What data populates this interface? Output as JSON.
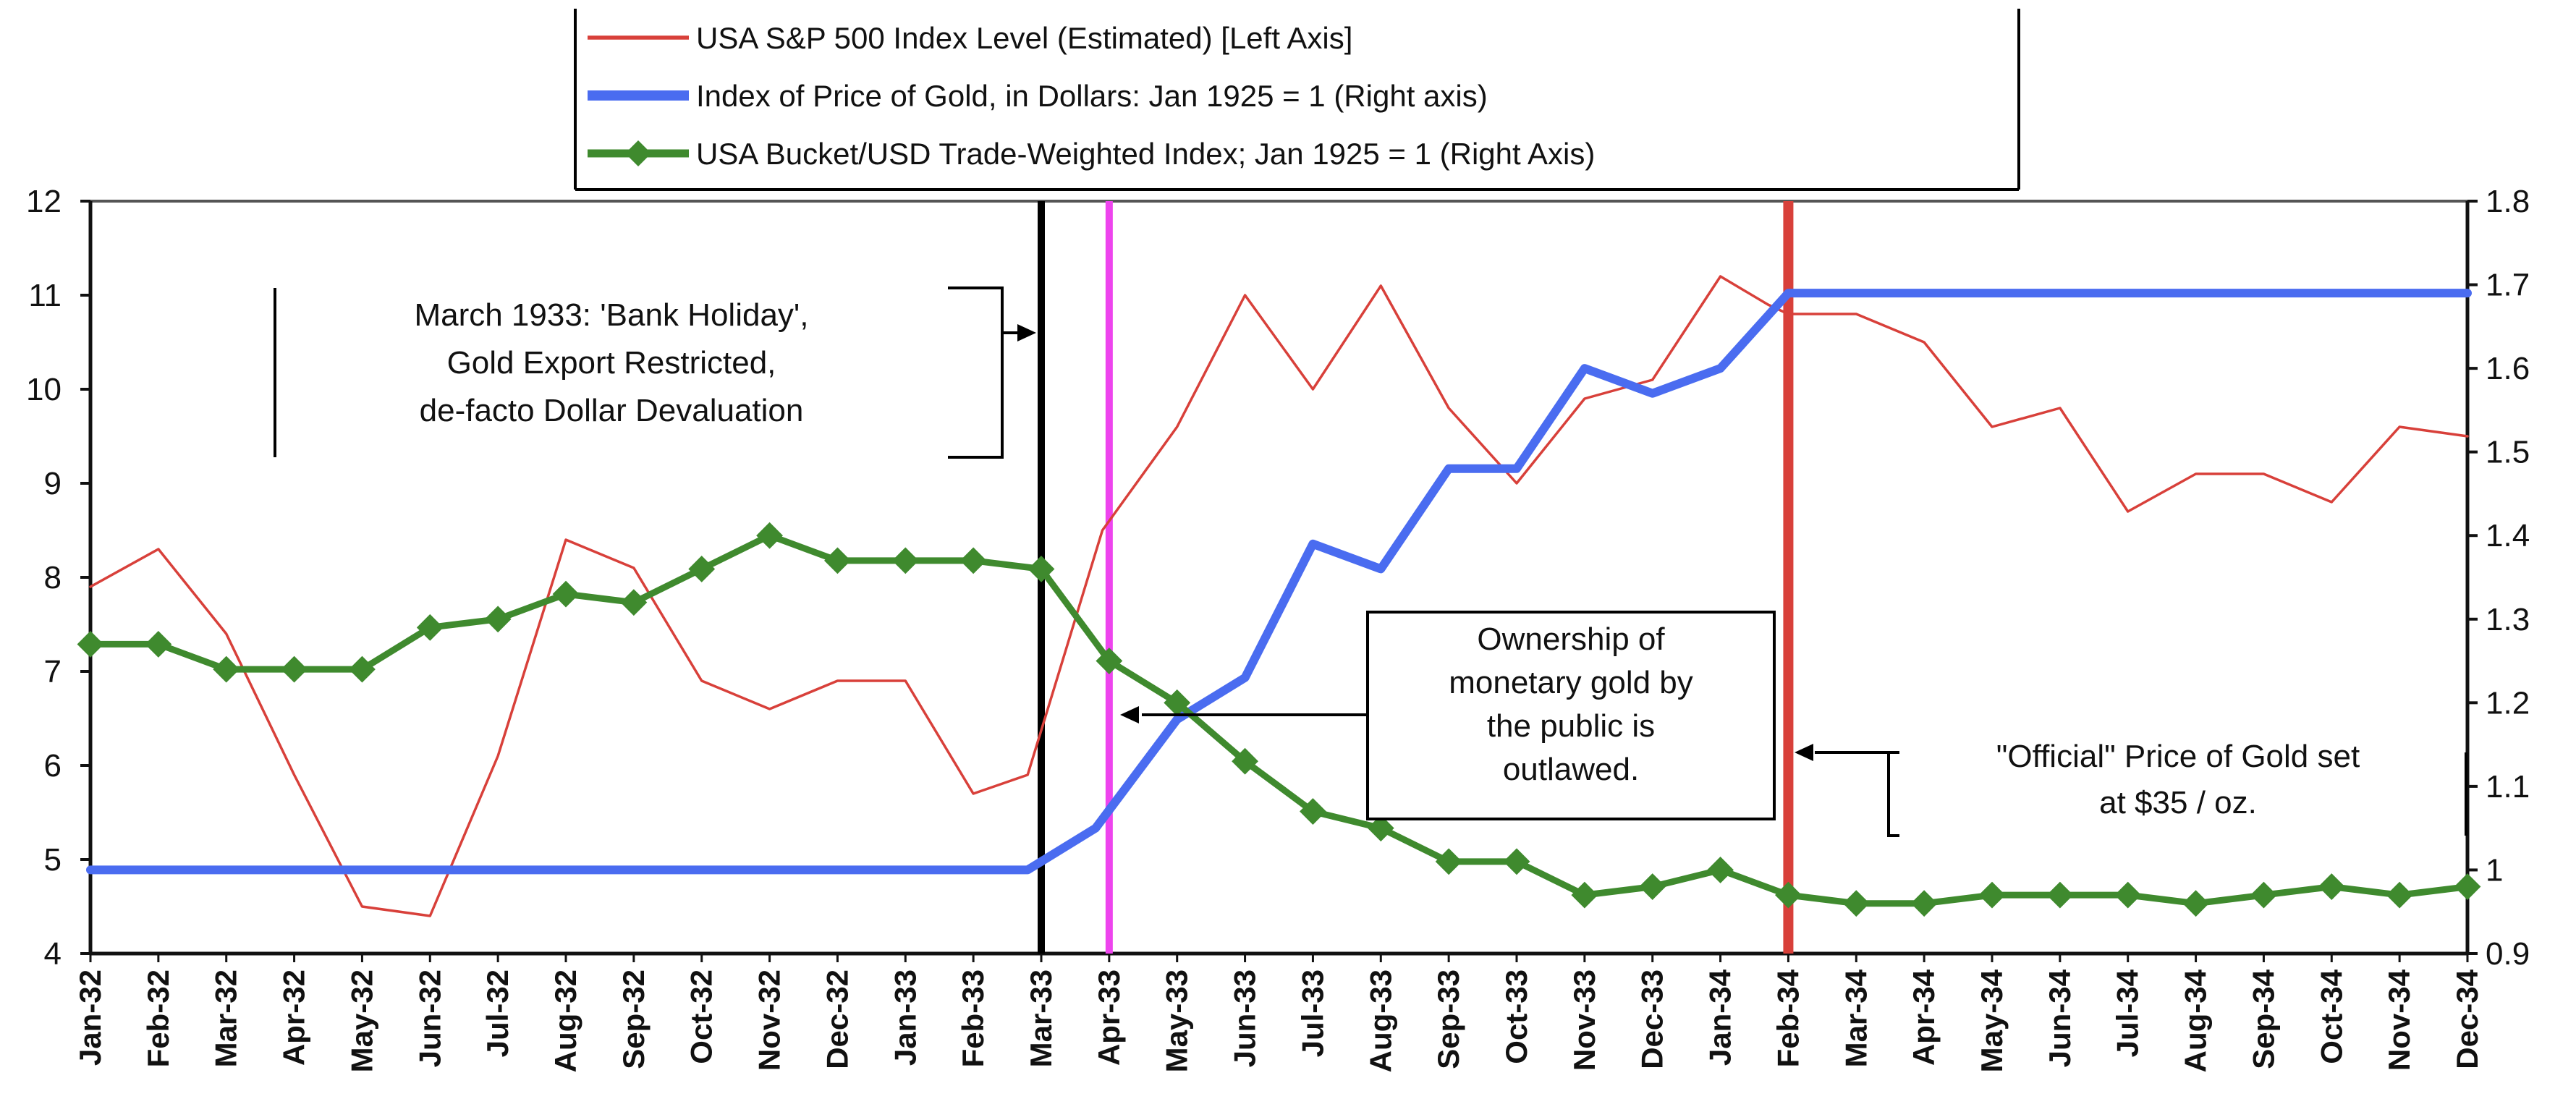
{
  "chart_data": {
    "type": "line",
    "title": "",
    "categories": [
      "Jan-32",
      "Feb-32",
      "Mar-32",
      "Apr-32",
      "May-32",
      "Jun-32",
      "Jul-32",
      "Aug-32",
      "Sep-32",
      "Oct-32",
      "Nov-32",
      "Dec-32",
      "Jan-33",
      "Feb-33",
      "Mar-33",
      "Apr-33",
      "May-33",
      "Jun-33",
      "Jul-33",
      "Aug-33",
      "Sep-33",
      "Oct-33",
      "Nov-33",
      "Dec-33",
      "Jan-34",
      "Feb-34",
      "Mar-34",
      "Apr-34",
      "May-34",
      "Jun-34",
      "Jul-34",
      "Aug-34",
      "Sep-34",
      "Oct-34",
      "Nov-34",
      "Dec-34"
    ],
    "y_left": {
      "min": 4,
      "max": 12,
      "ticks": [
        "4",
        "5",
        "6",
        "7",
        "8",
        "9",
        "10",
        "11",
        "12"
      ]
    },
    "y_right": {
      "min": 0.9,
      "max": 1.8,
      "ticks": [
        "0.9",
        "1",
        "1.1",
        "1.2",
        "1.3",
        "1.4",
        "1.5",
        "1.6",
        "1.7",
        "1.8"
      ]
    },
    "series": [
      {
        "name": "USA S&P 500 Index Level (Estimated) [Left Axis]",
        "axis": "left",
        "color": "#d8403a",
        "marker": "none",
        "points": [
          [
            0,
            7.9
          ],
          [
            1,
            8.3
          ],
          [
            2,
            7.4
          ],
          [
            3,
            5.9
          ],
          [
            4,
            4.5
          ],
          [
            5,
            4.4
          ],
          [
            6,
            6.1
          ],
          [
            7,
            8.4
          ],
          [
            8,
            8.1
          ],
          [
            9,
            6.9
          ],
          [
            10,
            6.6
          ],
          [
            11,
            6.9
          ],
          [
            12,
            6.9
          ],
          [
            13,
            5.7
          ],
          [
            13.8,
            5.9
          ],
          [
            14.9,
            8.5
          ],
          [
            16,
            9.6
          ],
          [
            17,
            11.0
          ],
          [
            18,
            10.0
          ],
          [
            19,
            11.1
          ],
          [
            20,
            9.8
          ],
          [
            21,
            9.0
          ],
          [
            22,
            9.9
          ],
          [
            23,
            10.1
          ],
          [
            24,
            11.2
          ],
          [
            24.7,
            10.9
          ],
          [
            25,
            10.8
          ],
          [
            26,
            10.8
          ],
          [
            27,
            10.5
          ],
          [
            28,
            9.6
          ],
          [
            29,
            9.8
          ],
          [
            30,
            8.7
          ],
          [
            31,
            9.1
          ],
          [
            32,
            9.1
          ],
          [
            33,
            8.8
          ],
          [
            34,
            9.6
          ],
          [
            35,
            9.5
          ]
        ]
      },
      {
        "name": "Index of Price of Gold, in Dollars: Jan 1925 = 1 (Right axis)",
        "axis": "right",
        "color": "#4a6cf0",
        "marker": "none",
        "points": [
          [
            0,
            1.0
          ],
          [
            13.8,
            1.0
          ],
          [
            14.8,
            1.05
          ],
          [
            16,
            1.18
          ],
          [
            17,
            1.23
          ],
          [
            18,
            1.39
          ],
          [
            19,
            1.36
          ],
          [
            20,
            1.48
          ],
          [
            21,
            1.48
          ],
          [
            22,
            1.6
          ],
          [
            23,
            1.57
          ],
          [
            24,
            1.6
          ],
          [
            25,
            1.69
          ],
          [
            35,
            1.69
          ]
        ]
      },
      {
        "name": "USA Bucket/USD Trade-Weighted Index; Jan 1925 = 1 (Right Axis)",
        "axis": "right",
        "color": "#3f8a2e",
        "marker": "diamond",
        "points": [
          [
            0,
            1.27
          ],
          [
            1,
            1.27
          ],
          [
            2,
            1.24
          ],
          [
            3,
            1.24
          ],
          [
            4,
            1.24
          ],
          [
            5,
            1.29
          ],
          [
            6,
            1.3
          ],
          [
            7,
            1.33
          ],
          [
            8,
            1.32
          ],
          [
            9,
            1.36
          ],
          [
            10,
            1.4
          ],
          [
            11,
            1.37
          ],
          [
            12,
            1.37
          ],
          [
            13,
            1.37
          ],
          [
            14,
            1.36
          ],
          [
            15,
            1.25
          ],
          [
            16,
            1.2
          ],
          [
            17,
            1.13
          ],
          [
            18,
            1.07
          ],
          [
            19,
            1.05
          ],
          [
            20,
            1.01
          ],
          [
            21,
            1.01
          ],
          [
            22,
            0.97
          ],
          [
            23,
            0.98
          ],
          [
            24,
            1.0
          ],
          [
            25,
            0.97
          ],
          [
            26,
            0.96
          ],
          [
            27,
            0.96
          ],
          [
            28,
            0.97
          ],
          [
            29,
            0.97
          ],
          [
            30,
            0.97
          ],
          [
            31,
            0.96
          ],
          [
            32,
            0.97
          ],
          [
            33,
            0.98
          ],
          [
            34,
            0.97
          ],
          [
            35,
            0.98
          ]
        ]
      }
    ],
    "vertical_lines": [
      {
        "at": 14,
        "color": "#000000",
        "label": "black-line"
      },
      {
        "at": 15,
        "color": "#ee44ee",
        "label": "magenta-line"
      },
      {
        "at": 25,
        "color": "#d8403a",
        "label": "red-line"
      }
    ],
    "annotations": [
      {
        "lines": [
          "March 1933: 'Bank Holiday',",
          "Gold Export Restricted,",
          "de-facto Dollar Devaluation"
        ]
      },
      {
        "lines": [
          "Ownership of",
          "monetary gold by",
          "the public is",
          "outlawed."
        ]
      },
      {
        "lines": [
          "\"Official\" Price of Gold set",
          "at $35 / oz."
        ]
      }
    ],
    "legend_placement": "top-center",
    "grid": false
  }
}
